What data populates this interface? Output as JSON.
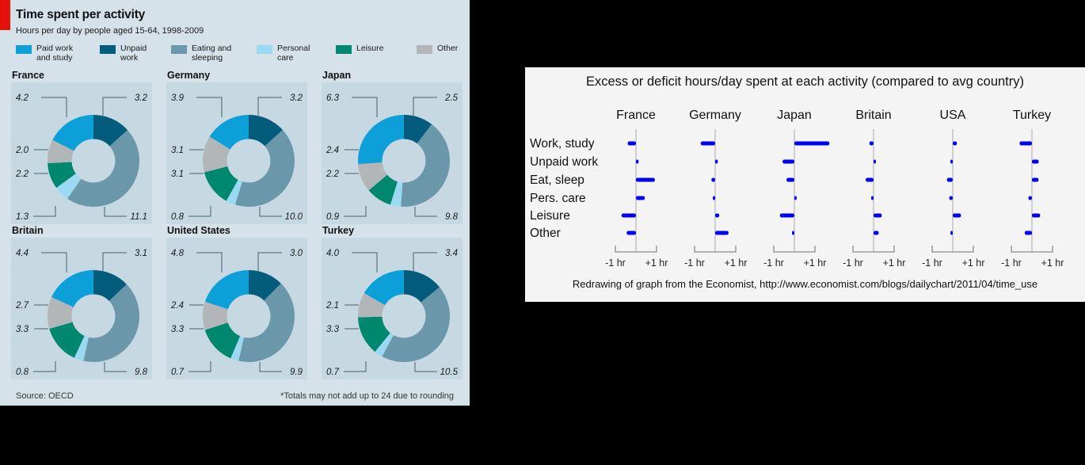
{
  "page": {
    "background": "#000000"
  },
  "economist_chart": {
    "title": "Time spent per activity",
    "subtitle": "Hours per day by people aged 15-64, 1998-2009",
    "source": "Source: OECD",
    "footnote": "*Totals may not add up to 24 due to rounding",
    "accent_red": "#e3120b",
    "background": "#d5e2e9",
    "panel_background": "#c6d8e1",
    "legend": [
      {
        "key": "paid",
        "lines": [
          "Paid work",
          "and study"
        ],
        "color": "#0d9fd8"
      },
      {
        "key": "unpaid",
        "lines": [
          "Unpaid",
          "work"
        ],
        "color": "#045c7c"
      },
      {
        "key": "eating",
        "lines": [
          "Eating and",
          "sleeping"
        ],
        "color": "#6b97ab"
      },
      {
        "key": "personal",
        "lines": [
          "Personal",
          "care"
        ],
        "color": "#9bd9f3"
      },
      {
        "key": "leisure",
        "lines": [
          "Leisure"
        ],
        "color": "#00876f"
      },
      {
        "key": "other",
        "lines": [
          "Other"
        ],
        "color": "#b3b6b8"
      }
    ]
  },
  "redrawn_chart": {
    "title": "Excess or deficit hours/day spent at each activity (compared to avg country)",
    "caption": "Redrawing of graph from the Economist, http://www.economist.com/blogs/dailychart/2011/04/time_use",
    "background": "#f4f4f4",
    "bar_color": "#0000ee",
    "axis_color": "#bbbbbb",
    "bracket_color": "#8a8a8a",
    "tick_labels": [
      "-1 hr",
      "+1 hr"
    ]
  },
  "chart_data": [
    {
      "type": "pie",
      "variant": "donut_small_multiples",
      "title": "Time spent per activity",
      "subtitle": "Hours per day by people aged 15-64, 1998-2009",
      "unit": "hours per day",
      "categories": [
        "Paid work and study",
        "Unpaid work",
        "Eating and sleeping",
        "Personal care",
        "Leisure",
        "Other"
      ],
      "category_keys": [
        "paid",
        "unpaid",
        "eating",
        "personal",
        "leisure",
        "other"
      ],
      "colors": [
        "#0d9fd8",
        "#045c7c",
        "#6b97ab",
        "#9bd9f3",
        "#00876f",
        "#b3b6b8"
      ],
      "slice_order_clockwise_from_top": [
        "unpaid",
        "eating",
        "personal",
        "leisure",
        "other",
        "paid"
      ],
      "series": [
        {
          "name": "France",
          "paid": 4.2,
          "unpaid": 3.2,
          "eating": 11.1,
          "personal": 1.3,
          "leisure": 2.2,
          "other": 2.0
        },
        {
          "name": "Germany",
          "paid": 3.9,
          "unpaid": 3.2,
          "eating": 10.0,
          "personal": 0.8,
          "leisure": 3.1,
          "other": 3.1
        },
        {
          "name": "Japan",
          "paid": 6.3,
          "unpaid": 2.5,
          "eating": 9.8,
          "personal": 0.9,
          "leisure": 2.2,
          "other": 2.4
        },
        {
          "name": "Britain",
          "paid": 4.4,
          "unpaid": 3.1,
          "eating": 9.8,
          "personal": 0.8,
          "leisure": 3.3,
          "other": 2.7
        },
        {
          "name": "United States",
          "paid": 4.8,
          "unpaid": 3.0,
          "eating": 9.9,
          "personal": 0.7,
          "leisure": 3.3,
          "other": 2.4
        },
        {
          "name": "Turkey",
          "paid": 4.0,
          "unpaid": 3.4,
          "eating": 10.5,
          "personal": 0.7,
          "leisure": 3.3,
          "other": 2.1
        }
      ]
    },
    {
      "type": "bar",
      "orientation": "horizontal",
      "title": "Excess or deficit hours/day spent at each activity (compared to avg country)",
      "categories": [
        "Work, study",
        "Unpaid work",
        "Eat, sleep",
        "Pers. care",
        "Leisure",
        "Other"
      ],
      "x_tick_labels": [
        "-1 hr",
        "+1 hr"
      ],
      "xlim_hours": [
        -1.3,
        1.8
      ],
      "unit": "hours per day relative to 6-country average",
      "series": [
        {
          "name": "France",
          "values": [
            -0.4,
            0.13,
            0.92,
            0.43,
            -0.7,
            -0.45
          ]
        },
        {
          "name": "Germany",
          "values": [
            -0.7,
            0.13,
            -0.18,
            -0.07,
            0.2,
            0.65
          ]
        },
        {
          "name": "Japan",
          "values": [
            1.7,
            -0.57,
            -0.38,
            0.03,
            -0.7,
            -0.05
          ]
        },
        {
          "name": "Britain",
          "values": [
            -0.2,
            0.03,
            -0.38,
            -0.07,
            0.4,
            0.25
          ]
        },
        {
          "name": "USA",
          "values": [
            0.2,
            -0.07,
            -0.28,
            -0.17,
            0.4,
            -0.05
          ]
        },
        {
          "name": "Turkey",
          "values": [
            -0.6,
            0.33,
            0.32,
            -0.17,
            0.4,
            -0.35
          ]
        }
      ]
    }
  ]
}
